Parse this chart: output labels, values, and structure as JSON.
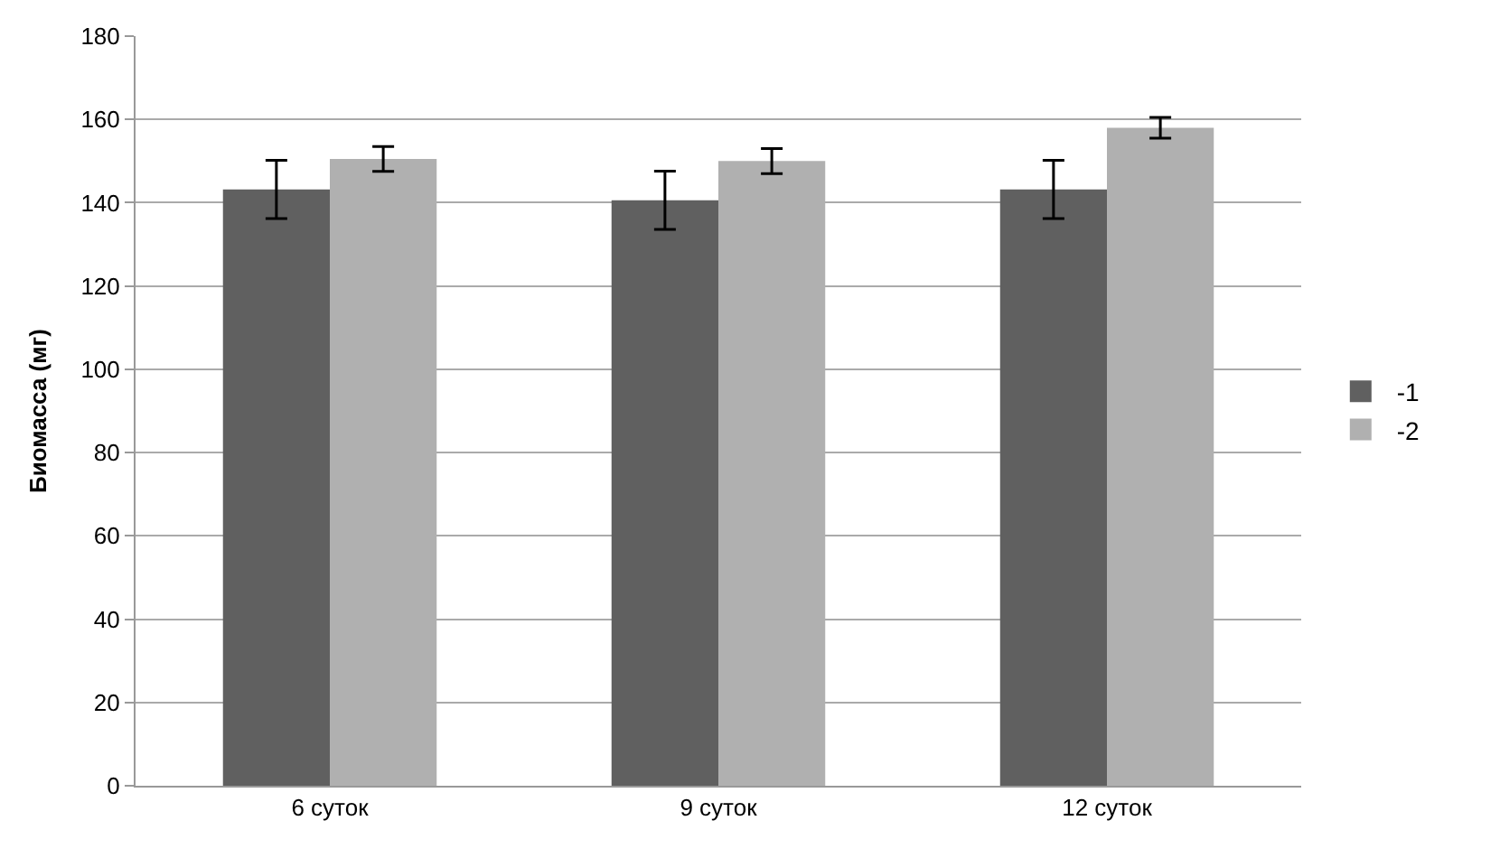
{
  "chart_data": {
    "type": "bar",
    "ylabel": "Биомасса (мг)",
    "categories": [
      "6 суток",
      "9 суток",
      "12 суток"
    ],
    "series": [
      {
        "name": "-1",
        "color": "#606060",
        "values": [
          143.2,
          140.6,
          143.2
        ],
        "errors": [
          7,
          7,
          7
        ]
      },
      {
        "name": "-2",
        "color": "#b0b0b0",
        "values": [
          150.5,
          150,
          158
        ],
        "errors": [
          3,
          3,
          2.5
        ]
      }
    ],
    "ylim": [
      0,
      180
    ],
    "yticks": [
      0,
      20,
      40,
      60,
      80,
      100,
      120,
      140,
      160,
      180
    ],
    "grid": "y",
    "legend": "right"
  }
}
